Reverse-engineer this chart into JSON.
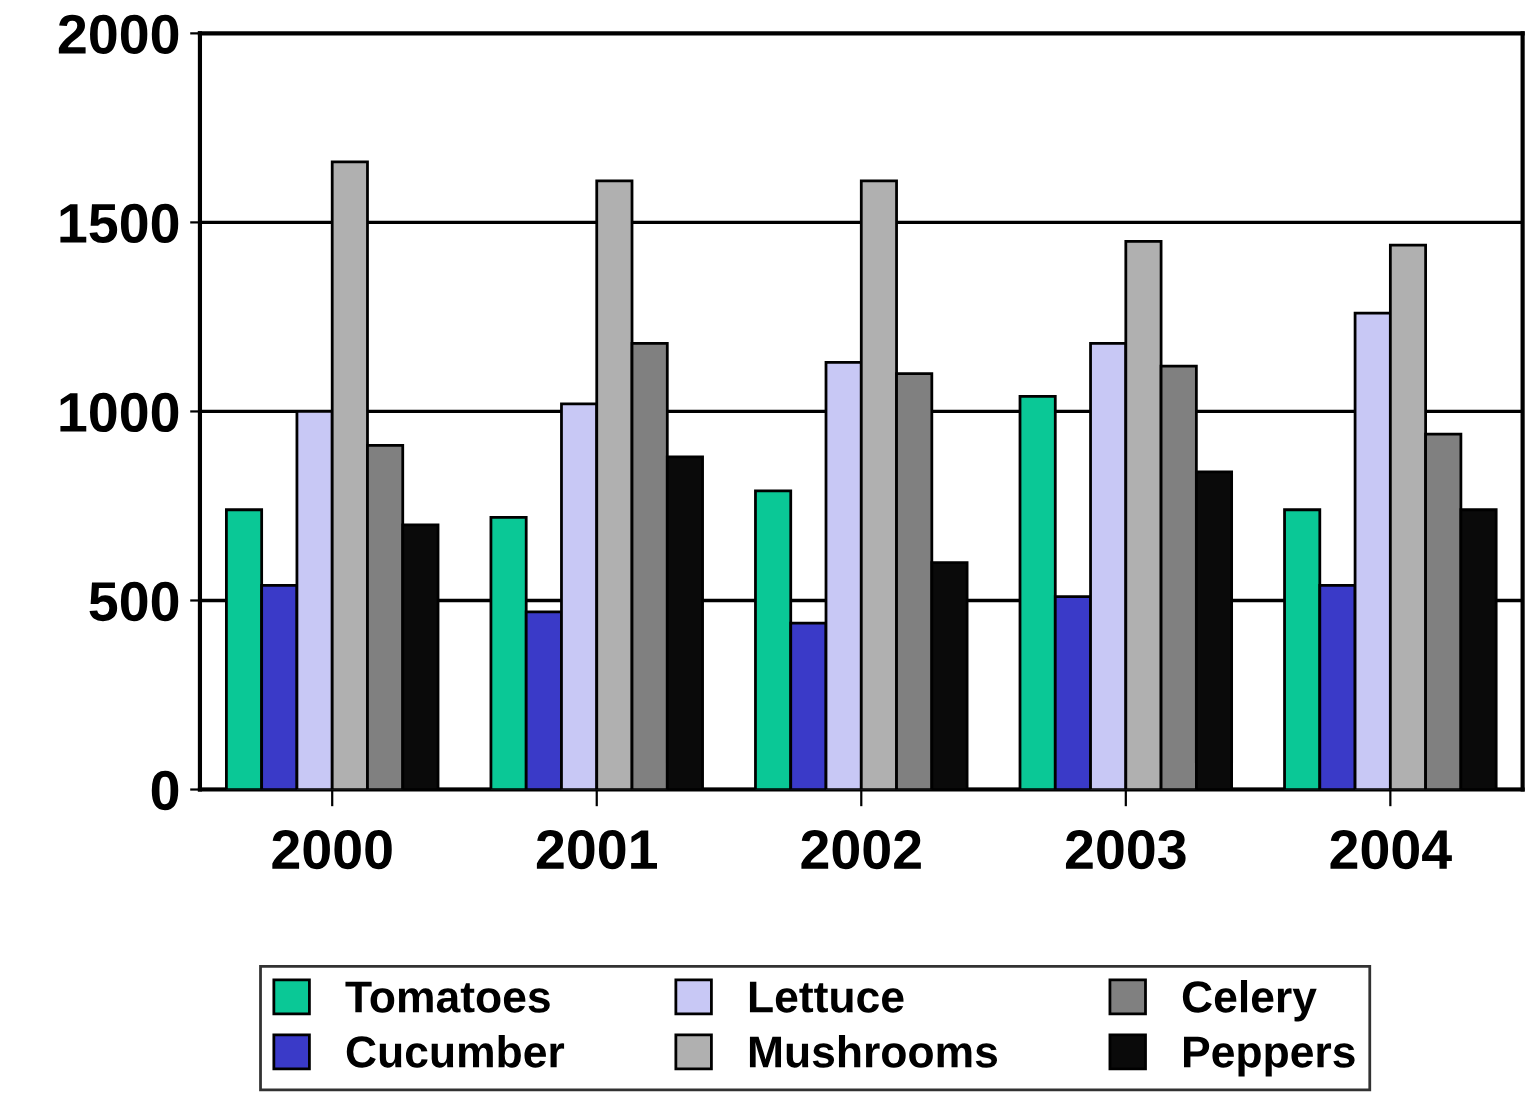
{
  "chart_data": {
    "type": "bar",
    "categories": [
      "2000",
      "2001",
      "2002",
      "2003",
      "2004"
    ],
    "series": [
      {
        "name": "Tomatoes",
        "color": "#0ac896",
        "values": [
          740,
          720,
          790,
          1040,
          740
        ]
      },
      {
        "name": "Cucumber",
        "color": "#3a3ac8",
        "values": [
          540,
          470,
          440,
          510,
          540
        ]
      },
      {
        "name": "Lettuce",
        "color": "#c8c8f5",
        "values": [
          1000,
          1020,
          1130,
          1180,
          1260
        ]
      },
      {
        "name": "Mushrooms",
        "color": "#b0b0b0",
        "values": [
          1660,
          1610,
          1610,
          1450,
          1440
        ]
      },
      {
        "name": "Celery",
        "color": "#808080",
        "values": [
          910,
          1180,
          1100,
          1120,
          940
        ]
      },
      {
        "name": "Peppers",
        "color": "#0a0a0a",
        "values": [
          700,
          880,
          600,
          840,
          740
        ]
      }
    ],
    "ylim": [
      0,
      2000
    ],
    "yticks": [
      0,
      500,
      1000,
      1500,
      2000
    ],
    "grid": "y",
    "legend": "bottom"
  }
}
